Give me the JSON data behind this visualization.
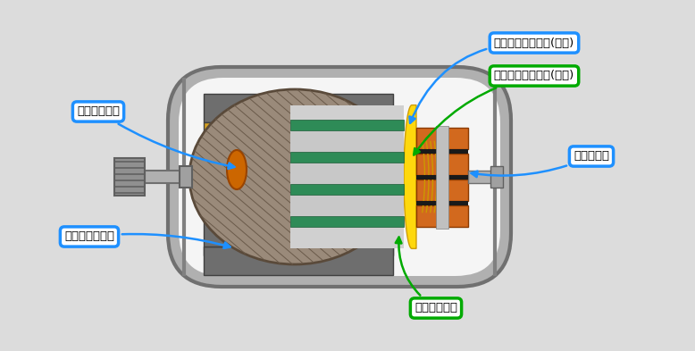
{
  "bg_color": "#dcdcdc",
  "labels": {
    "balance_putty": "バランスパテ",
    "magnet_bond": "マグネット接着",
    "coil_liquid": "コイル含浸／固着(液状)",
    "coil_powder": "コイル含浸／固着(粉体)",
    "commutator": "コンミ接着",
    "slot_insulation": "スロット絶縁"
  },
  "colors": {
    "bg": "#dcdcdc",
    "outer_shell": "#b0b0b0",
    "outer_shell_edge": "#707070",
    "inner_bg": "#f5f5f5",
    "magnet_gray": "#6e6e6e",
    "magnet_gold": "#d4a020",
    "rotor_hatch": "#8a7a6a",
    "rotor_edge": "#5a4a3a",
    "coil_green": "#2e8b57",
    "coil_green_edge": "#1a5a35",
    "cylinder_gray": "#d0d0d0",
    "winding_yellow": "#ffd700",
    "winding_edge": "#cc9900",
    "comm_orange": "#d2691e",
    "comm_dark": "#8b3a00",
    "comm_gap": "#1a1a1a",
    "shaft_gray": "#b0b0b0",
    "shaft_edge": "#707070",
    "knurl_gray": "#909090",
    "knurl_edge": "#606060",
    "wall_gray": "#909090",
    "putty_orange": "#cc6600",
    "putty_edge": "#994400",
    "arrow_blue": "#1e90ff",
    "arrow_green": "#00aa00",
    "label_bg": "#ffffff"
  }
}
